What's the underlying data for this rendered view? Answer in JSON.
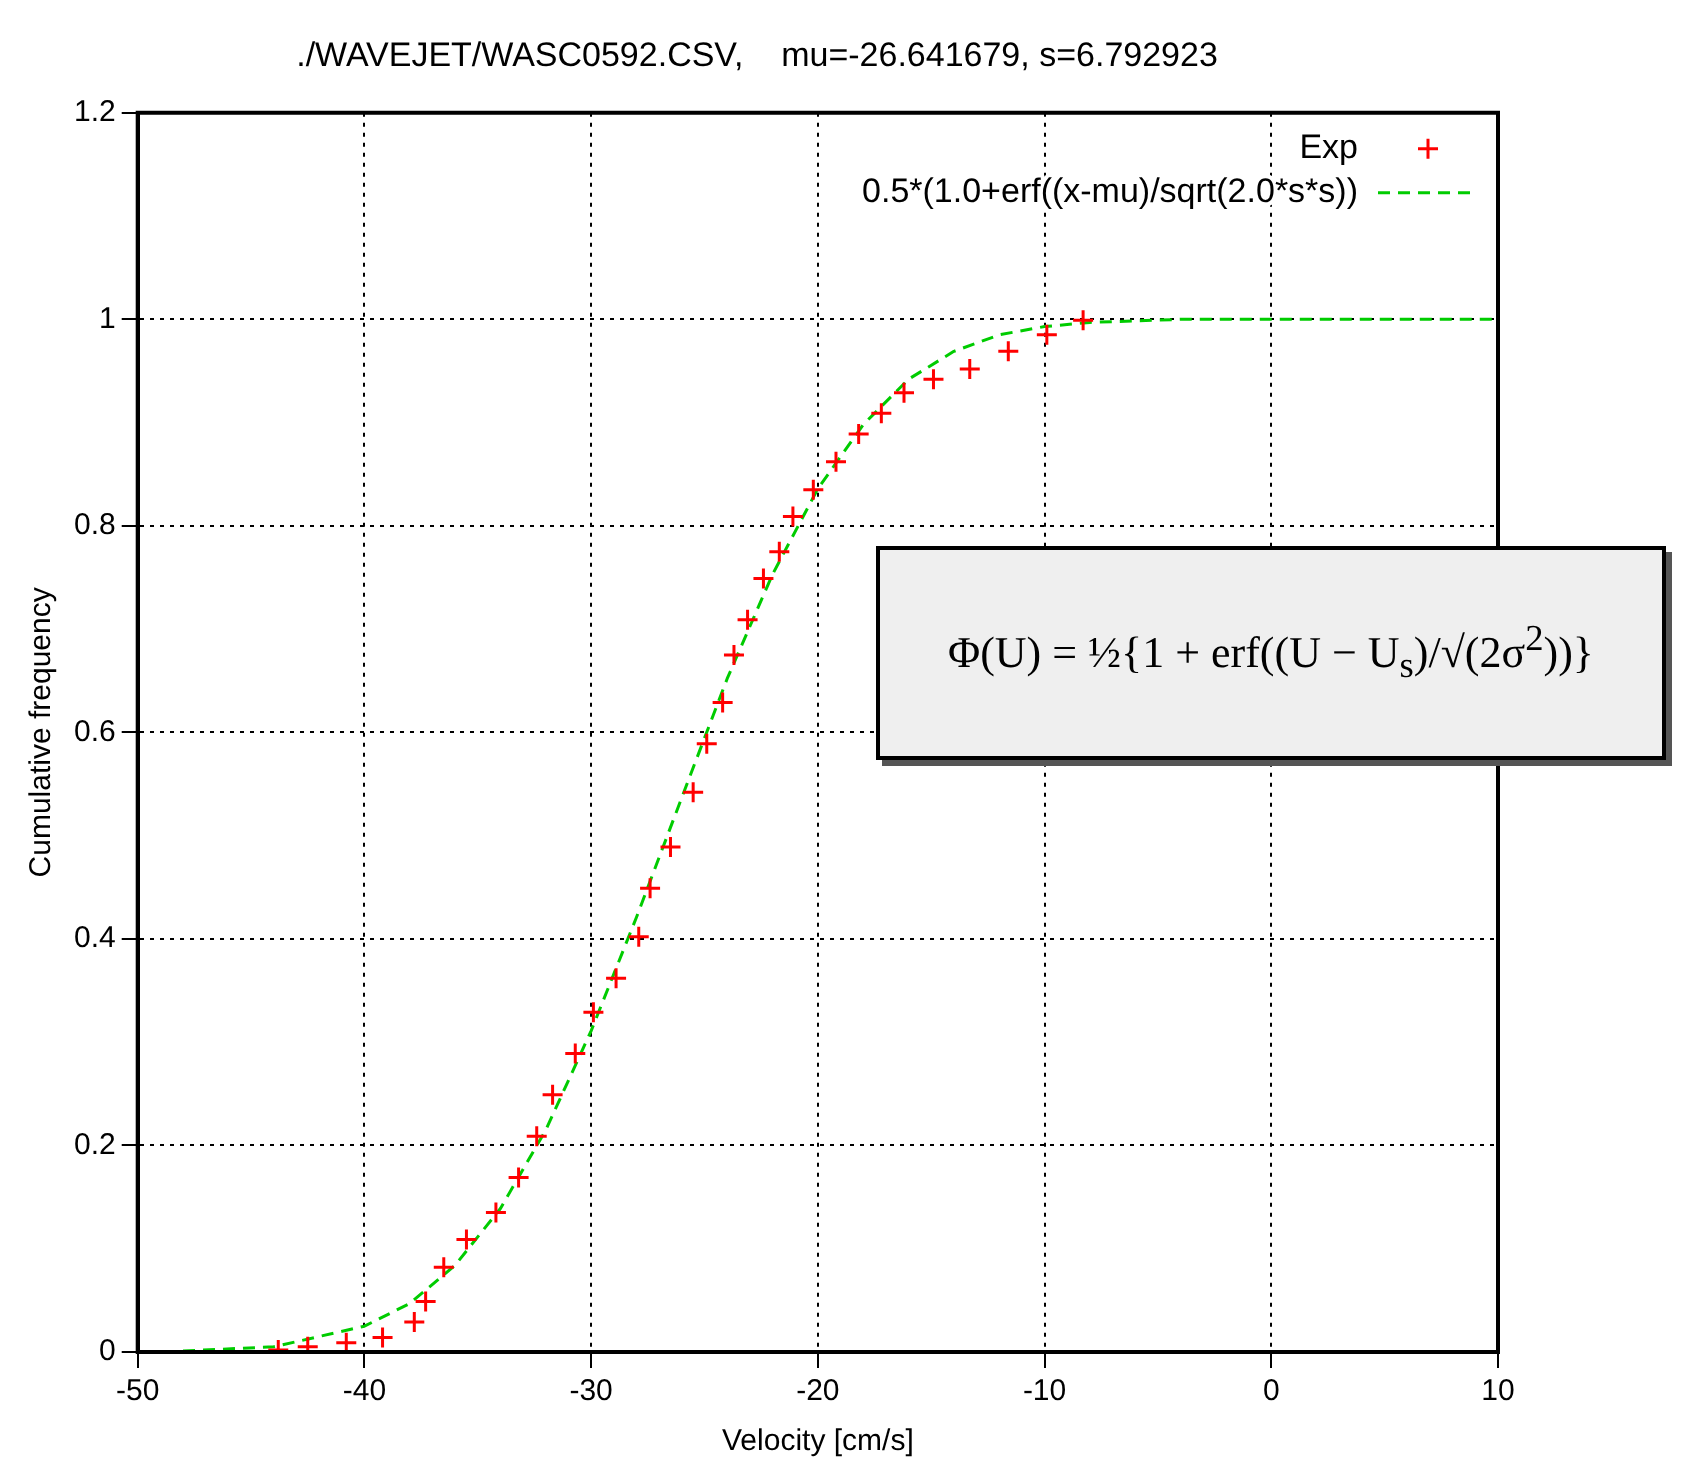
{
  "chart_data": {
    "type": "scatter",
    "title": "./WAVEJET/WASC0592.CSV,    mu=-26.641679, s=6.792923",
    "xlabel": "Velocity [cm/s]",
    "ylabel": "Cumulative frequency",
    "xlim": [
      -50,
      10
    ],
    "xticks": [
      -50,
      -40,
      -30,
      -20,
      -10,
      0,
      10
    ],
    "ylim": [
      0,
      1.2
    ],
    "yticks": [
      0,
      0.2,
      0.4,
      0.6,
      0.8,
      1,
      1.2
    ],
    "grid": true,
    "legend": "top right",
    "annotations": [
      "Φ(U) = ½{1 + erf((U − U$_{s}$)/√(2σ$^{2}$))}"
    ],
    "series": [
      {
        "name": "Exp",
        "type": "scatter",
        "color": "#ff0000",
        "marker": "cross",
        "x": [
          -43.8,
          -42.5,
          -40.8,
          -39.2,
          -37.8,
          -37.3,
          -36.5,
          -35.5,
          -34.2,
          -33.2,
          -32.4,
          -31.7,
          -30.7,
          -29.9,
          -28.9,
          -27.9,
          -27.4,
          -26.5,
          -25.5,
          -24.9,
          -24.2,
          -23.7,
          -23.1,
          -22.4,
          -21.7,
          -21.1,
          -20.2,
          -19.2,
          -18.2,
          -17.2,
          -16.2,
          -14.9,
          -13.3,
          -11.6,
          -9.9,
          -8.3
        ],
        "values": [
          0.002,
          0.005,
          0.009,
          0.014,
          0.029,
          0.049,
          0.082,
          0.109,
          0.135,
          0.169,
          0.209,
          0.249,
          0.289,
          0.329,
          0.362,
          0.402,
          0.449,
          0.489,
          0.542,
          0.589,
          0.629,
          0.675,
          0.709,
          0.749,
          0.775,
          0.809,
          0.835,
          0.862,
          0.889,
          0.909,
          0.929,
          0.942,
          0.952,
          0.969,
          0.985,
          0.999
        ]
      },
      {
        "name": "0.5*(1.0+erf((x-mu)/sqrt(2.0*s*s))",
        "type": "line",
        "color": "#00cc00",
        "marker": "none",
        "line_style": "dashed",
        "x": [
          -48,
          -44,
          -40,
          -38,
          -36,
          -34,
          -32,
          -30,
          -28,
          -26,
          -24,
          -22,
          -20,
          -18,
          -16,
          -14,
          -12,
          -10,
          -8,
          -4,
          0,
          5,
          10
        ],
        "values": [
          0.001,
          0.005,
          0.025,
          0.047,
          0.084,
          0.139,
          0.215,
          0.311,
          0.421,
          0.537,
          0.652,
          0.753,
          0.836,
          0.898,
          0.942,
          0.969,
          0.985,
          0.993,
          0.997,
          1,
          1,
          1,
          1
        ]
      }
    ]
  }
}
